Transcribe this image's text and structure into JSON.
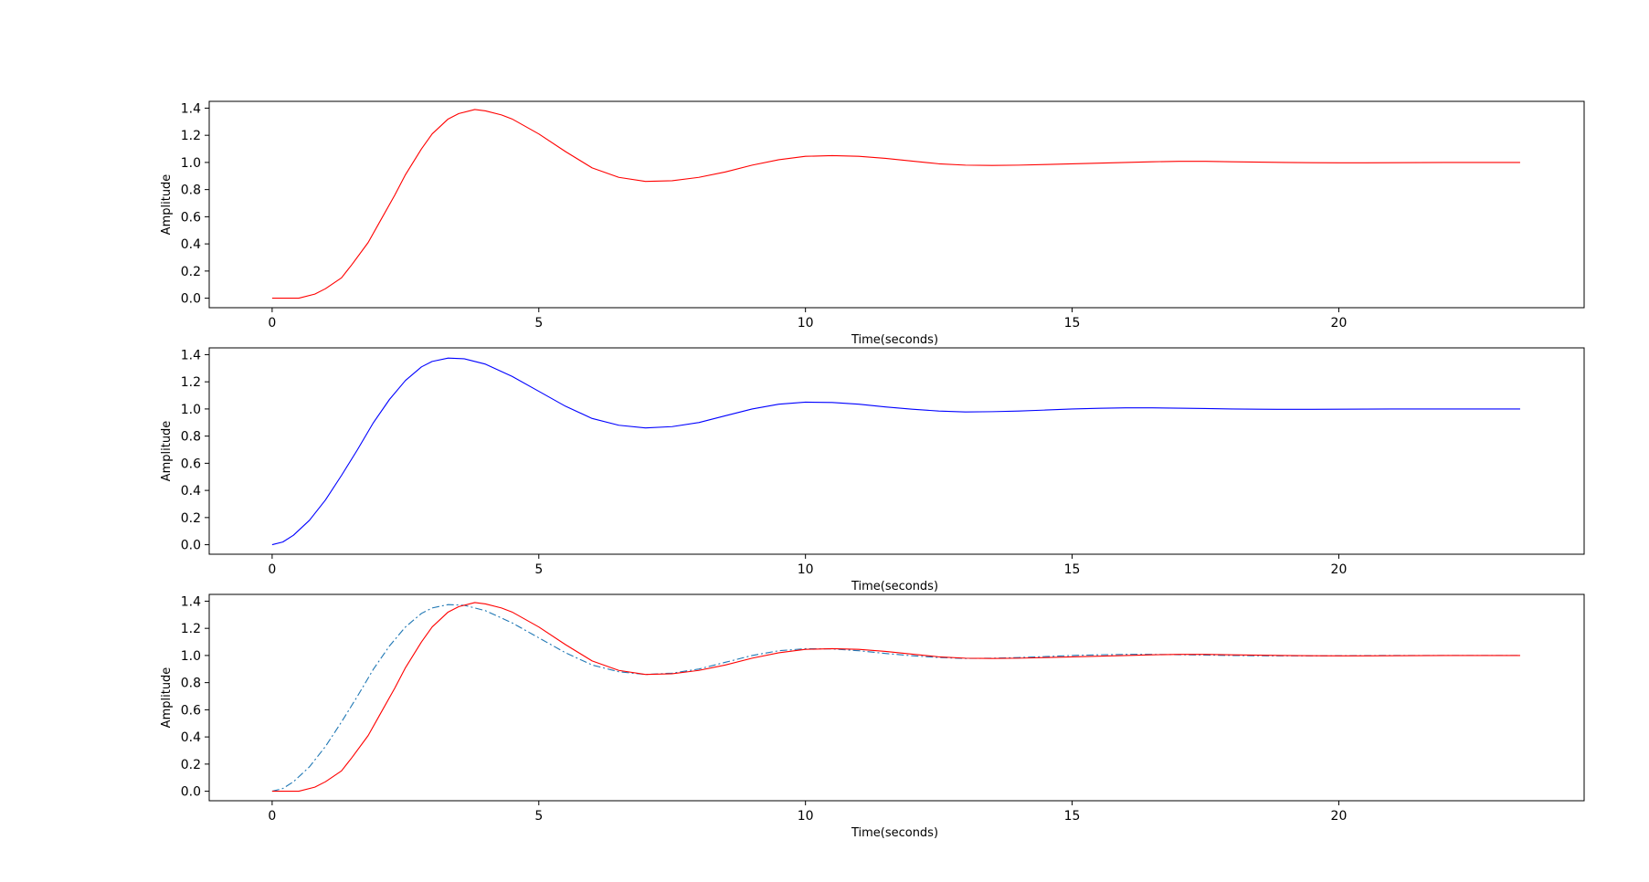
{
  "chart_data": [
    {
      "type": "line",
      "title": "",
      "xlabel": "Time(seconds)",
      "ylabel": "Amplitude",
      "xlim": [
        -1.18,
        24.6
      ],
      "ylim": [
        -0.07,
        1.45
      ],
      "x_ticks": [
        0,
        5,
        10,
        15,
        20
      ],
      "x_tick_labels": [
        "0",
        "5",
        "10",
        "15",
        "20"
      ],
      "y_ticks": [
        0.0,
        0.2,
        0.4,
        0.6,
        0.8,
        1.0,
        1.2,
        1.4
      ],
      "y_tick_labels": [
        "0.0",
        "0.2",
        "0.4",
        "0.6",
        "0.8",
        "1.0",
        "1.2",
        "1.4"
      ],
      "grid": false,
      "series": [
        {
          "color": "#ff0000",
          "style": "solid",
          "x": [
            0,
            0.5,
            0.8,
            1.0,
            1.3,
            1.5,
            1.8,
            2.0,
            2.3,
            2.5,
            2.8,
            3.0,
            3.3,
            3.5,
            3.8,
            4.0,
            4.3,
            4.5,
            5.0,
            5.5,
            6.0,
            6.5,
            7.0,
            7.5,
            8.0,
            8.5,
            9.0,
            9.5,
            10.0,
            10.5,
            11.0,
            11.5,
            12.0,
            12.5,
            13.0,
            13.5,
            14.0,
            14.5,
            15.0,
            15.5,
            16.0,
            16.5,
            17.0,
            17.5,
            18.0,
            18.5,
            19.0,
            19.5,
            20.0,
            20.5,
            21.0,
            21.5,
            22.0,
            22.5,
            23.0,
            23.4
          ],
          "y": [
            0.0,
            0.0,
            0.03,
            0.07,
            0.15,
            0.25,
            0.41,
            0.55,
            0.76,
            0.91,
            1.1,
            1.21,
            1.32,
            1.36,
            1.39,
            1.38,
            1.35,
            1.32,
            1.21,
            1.08,
            0.96,
            0.89,
            0.86,
            0.865,
            0.89,
            0.93,
            0.98,
            1.02,
            1.045,
            1.05,
            1.045,
            1.03,
            1.01,
            0.99,
            0.98,
            0.978,
            0.98,
            0.985,
            0.99,
            0.995,
            1.0,
            1.005,
            1.008,
            1.008,
            1.005,
            1.002,
            1.0,
            0.998,
            0.997,
            0.997,
            0.998,
            0.999,
            1.0,
            1.0,
            1.0,
            1.0
          ]
        }
      ]
    },
    {
      "type": "line",
      "title": "",
      "xlabel": "Time(seconds)",
      "ylabel": "Amplitude",
      "xlim": [
        -1.18,
        24.6
      ],
      "ylim": [
        -0.07,
        1.45
      ],
      "x_ticks": [
        0,
        5,
        10,
        15,
        20
      ],
      "x_tick_labels": [
        "0",
        "5",
        "10",
        "15",
        "20"
      ],
      "y_ticks": [
        0.0,
        0.2,
        0.4,
        0.6,
        0.8,
        1.0,
        1.2,
        1.4
      ],
      "y_tick_labels": [
        "0.0",
        "0.2",
        "0.4",
        "0.6",
        "0.8",
        "1.0",
        "1.2",
        "1.4"
      ],
      "grid": false,
      "series": [
        {
          "color": "#0000ff",
          "style": "solid",
          "x": [
            0,
            0.2,
            0.4,
            0.7,
            1.0,
            1.3,
            1.6,
            1.9,
            2.2,
            2.5,
            2.8,
            3.0,
            3.3,
            3.6,
            4.0,
            4.5,
            5.0,
            5.5,
            6.0,
            6.5,
            7.0,
            7.5,
            8.0,
            8.5,
            9.0,
            9.5,
            10.0,
            10.5,
            11.0,
            11.5,
            12.0,
            12.5,
            13.0,
            13.5,
            14.0,
            14.5,
            15.0,
            15.5,
            16.0,
            16.5,
            17.0,
            17.5,
            18.0,
            18.5,
            19.0,
            19.5,
            20.0,
            20.5,
            21.0,
            21.5,
            22.0,
            22.5,
            23.0,
            23.4
          ],
          "y": [
            0.0,
            0.02,
            0.07,
            0.18,
            0.33,
            0.51,
            0.7,
            0.9,
            1.07,
            1.21,
            1.31,
            1.35,
            1.375,
            1.37,
            1.33,
            1.24,
            1.13,
            1.02,
            0.93,
            0.88,
            0.86,
            0.87,
            0.9,
            0.95,
            1.0,
            1.035,
            1.05,
            1.048,
            1.035,
            1.015,
            0.998,
            0.985,
            0.978,
            0.98,
            0.985,
            0.992,
            1.0,
            1.005,
            1.008,
            1.008,
            1.006,
            1.003,
            1.0,
            0.998,
            0.997,
            0.997,
            0.998,
            0.999,
            1.0,
            1.0,
            1.0,
            1.0,
            1.0,
            1.0
          ]
        }
      ]
    },
    {
      "type": "line",
      "title": "",
      "xlabel": "Time(seconds)",
      "ylabel": "Amplitude",
      "xlim": [
        -1.18,
        24.6
      ],
      "ylim": [
        -0.07,
        1.45
      ],
      "x_ticks": [
        0,
        5,
        10,
        15,
        20
      ],
      "x_tick_labels": [
        "0",
        "5",
        "10",
        "15",
        "20"
      ],
      "y_ticks": [
        0.0,
        0.2,
        0.4,
        0.6,
        0.8,
        1.0,
        1.2,
        1.4
      ],
      "y_tick_labels": [
        "0.0",
        "0.2",
        "0.4",
        "0.6",
        "0.8",
        "1.0",
        "1.2",
        "1.4"
      ],
      "grid": false,
      "series": [
        {
          "color": "#1f77b4",
          "style": "dashdot",
          "x": [
            0,
            0.2,
            0.4,
            0.7,
            1.0,
            1.3,
            1.6,
            1.9,
            2.2,
            2.5,
            2.8,
            3.0,
            3.3,
            3.6,
            4.0,
            4.5,
            5.0,
            5.5,
            6.0,
            6.5,
            7.0,
            7.5,
            8.0,
            8.5,
            9.0,
            9.5,
            10.0,
            10.5,
            11.0,
            11.5,
            12.0,
            12.5,
            13.0,
            13.5,
            14.0,
            14.5,
            15.0,
            15.5,
            16.0,
            16.5,
            17.0,
            17.5,
            18.0,
            18.5,
            19.0,
            19.5,
            20.0,
            20.5,
            21.0,
            21.5,
            22.0,
            22.5,
            23.0,
            23.4
          ],
          "y": [
            0.0,
            0.02,
            0.07,
            0.18,
            0.33,
            0.51,
            0.7,
            0.9,
            1.07,
            1.21,
            1.31,
            1.35,
            1.375,
            1.37,
            1.33,
            1.24,
            1.13,
            1.02,
            0.93,
            0.88,
            0.86,
            0.87,
            0.9,
            0.95,
            1.0,
            1.035,
            1.05,
            1.048,
            1.035,
            1.015,
            0.998,
            0.985,
            0.978,
            0.98,
            0.985,
            0.992,
            1.0,
            1.005,
            1.008,
            1.008,
            1.006,
            1.003,
            1.0,
            0.998,
            0.997,
            0.997,
            0.998,
            0.999,
            1.0,
            1.0,
            1.0,
            1.0,
            1.0,
            1.0
          ]
        },
        {
          "color": "#ff0000",
          "style": "solid",
          "x": [
            0,
            0.5,
            0.8,
            1.0,
            1.3,
            1.5,
            1.8,
            2.0,
            2.3,
            2.5,
            2.8,
            3.0,
            3.3,
            3.5,
            3.8,
            4.0,
            4.3,
            4.5,
            5.0,
            5.5,
            6.0,
            6.5,
            7.0,
            7.5,
            8.0,
            8.5,
            9.0,
            9.5,
            10.0,
            10.5,
            11.0,
            11.5,
            12.0,
            12.5,
            13.0,
            13.5,
            14.0,
            14.5,
            15.0,
            15.5,
            16.0,
            16.5,
            17.0,
            17.5,
            18.0,
            18.5,
            19.0,
            19.5,
            20.0,
            20.5,
            21.0,
            21.5,
            22.0,
            22.5,
            23.0,
            23.4
          ],
          "y": [
            0.0,
            0.0,
            0.03,
            0.07,
            0.15,
            0.25,
            0.41,
            0.55,
            0.76,
            0.91,
            1.1,
            1.21,
            1.32,
            1.36,
            1.39,
            1.38,
            1.35,
            1.32,
            1.21,
            1.08,
            0.96,
            0.89,
            0.86,
            0.865,
            0.89,
            0.93,
            0.98,
            1.02,
            1.045,
            1.05,
            1.045,
            1.03,
            1.01,
            0.99,
            0.98,
            0.978,
            0.98,
            0.985,
            0.99,
            0.995,
            1.0,
            1.005,
            1.008,
            1.008,
            1.005,
            1.002,
            1.0,
            0.998,
            0.997,
            0.997,
            0.998,
            0.999,
            1.0,
            1.0,
            1.0,
            1.0
          ]
        }
      ]
    }
  ]
}
